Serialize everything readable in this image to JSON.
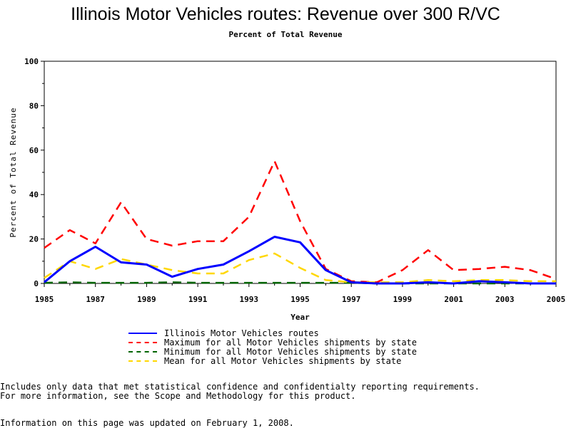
{
  "chart_data": {
    "type": "line",
    "title": "Illinois Motor Vehicles routes: Revenue over 300 R/VC",
    "subtitle": "Percent of Total Revenue",
    "xlabel": "Year",
    "ylabel": "Percent of Total Revenue",
    "xlim": [
      1985,
      2005
    ],
    "ylim": [
      0,
      100
    ],
    "x_ticks": [
      "1985",
      "1987",
      "1989",
      "1991",
      "1993",
      "1995",
      "1997",
      "1999",
      "2001",
      "2003",
      "2005"
    ],
    "y_ticks": [
      "0",
      "20",
      "40",
      "60",
      "80",
      "100"
    ],
    "grid": false,
    "legend_position": "bottom",
    "x": [
      1985,
      1986,
      1987,
      1988,
      1989,
      1990,
      1991,
      1992,
      1993,
      1994,
      1995,
      1996,
      1997,
      1998,
      1999,
      2000,
      2001,
      2002,
      2003,
      2004,
      2005
    ],
    "series": [
      {
        "name": "Illinois Motor Vehicles routes",
        "color": "#0000ff",
        "style": "solid",
        "values": [
          0.5,
          10,
          16.5,
          9.5,
          8.5,
          3,
          6.5,
          8.5,
          14.5,
          21,
          18.5,
          6,
          0.5,
          0,
          0,
          0.5,
          0,
          1,
          0.5,
          0,
          0
        ]
      },
      {
        "name": "Maximum for all Motor Vehicles shipments by state",
        "color": "#ff0000",
        "style": "dashed",
        "values": [
          16,
          24,
          18,
          36.5,
          20,
          17,
          19,
          19,
          30,
          55,
          28,
          6.5,
          1,
          0.5,
          6,
          15,
          6,
          6.5,
          7.5,
          6,
          2
        ]
      },
      {
        "name": "Minimum for all Motor Vehicles shipments by state",
        "color": "#006400",
        "style": "dashed",
        "values": [
          0.3,
          0.5,
          0.3,
          0.3,
          0.3,
          0.5,
          0.3,
          0.3,
          0.3,
          0.3,
          0.3,
          0.3,
          0.3,
          0,
          0,
          0,
          0,
          0,
          0,
          0,
          0
        ]
      },
      {
        "name": "Mean for all Motor Vehicles shipments by state",
        "color": "#ffd700",
        "style": "dashed",
        "values": [
          2.5,
          10,
          6.5,
          11,
          8.5,
          6,
          4.5,
          4.5,
          10.5,
          13.5,
          7,
          1.5,
          0.5,
          0.5,
          0.5,
          1.5,
          1,
          1.5,
          1.5,
          1,
          1
        ]
      }
    ]
  },
  "footnotes": {
    "line1": "Includes only data that met statistical confidence and confidentialty reporting requirements.",
    "line2": "For more information, see the Scope and Methodology for this product.",
    "line3": "Information on this page was updated on February 1, 2008."
  }
}
